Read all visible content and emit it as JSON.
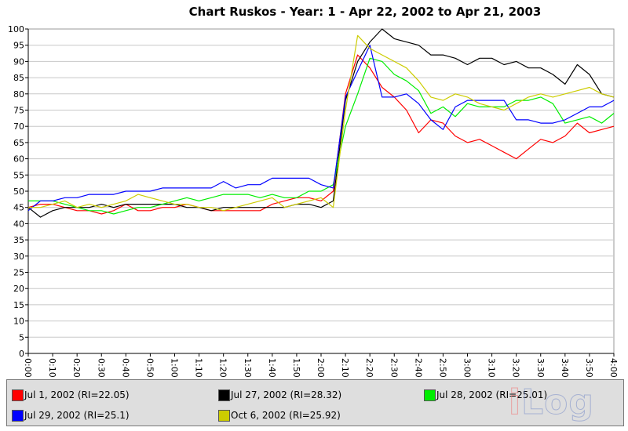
{
  "chart_data": {
    "type": "line",
    "title": "Chart Ruskos - Year: 1 - Apr 22, 2002 to Apr 21, 2003",
    "xlabel": "",
    "ylabel": "",
    "ylim": [
      0,
      100
    ],
    "yticks": [
      0,
      5,
      10,
      15,
      20,
      25,
      30,
      35,
      40,
      45,
      50,
      55,
      60,
      65,
      70,
      75,
      80,
      85,
      90,
      95,
      100
    ],
    "x_tick_labels": [
      "0:00",
      "0:10",
      "0:20",
      "0:30",
      "0:40",
      "0:50",
      "1:00",
      "1:10",
      "1:20",
      "1:30",
      "1:40",
      "1:50",
      "2:00",
      "2:10",
      "2:20",
      "2:30",
      "2:40",
      "2:50",
      "3:00",
      "3:10",
      "3:20",
      "3:30",
      "3:40",
      "3:50",
      "4:00"
    ],
    "x_minutes_range": [
      0,
      240
    ],
    "grid": true,
    "legend_position": "bottom",
    "series": [
      {
        "name": "Jul 1, 2002 (RI=22.05)",
        "color": "#ff0000",
        "points": [
          [
            0,
            45
          ],
          [
            5,
            46
          ],
          [
            10,
            46
          ],
          [
            15,
            45
          ],
          [
            20,
            44
          ],
          [
            25,
            44
          ],
          [
            30,
            43
          ],
          [
            35,
            44
          ],
          [
            40,
            46
          ],
          [
            45,
            44
          ],
          [
            50,
            44
          ],
          [
            55,
            45
          ],
          [
            60,
            45
          ],
          [
            65,
            46
          ],
          [
            70,
            45
          ],
          [
            75,
            44
          ],
          [
            80,
            44
          ],
          [
            85,
            44
          ],
          [
            90,
            44
          ],
          [
            95,
            44
          ],
          [
            100,
            46
          ],
          [
            105,
            47
          ],
          [
            110,
            48
          ],
          [
            115,
            48
          ],
          [
            120,
            47
          ],
          [
            125,
            50
          ],
          [
            130,
            80
          ],
          [
            135,
            92
          ],
          [
            140,
            88
          ],
          [
            145,
            82
          ],
          [
            150,
            79
          ],
          [
            155,
            75
          ],
          [
            160,
            68
          ],
          [
            165,
            72
          ],
          [
            170,
            71
          ],
          [
            175,
            67
          ],
          [
            180,
            65
          ],
          [
            185,
            66
          ],
          [
            190,
            64
          ],
          [
            195,
            62
          ],
          [
            200,
            60
          ],
          [
            205,
            63
          ],
          [
            210,
            66
          ],
          [
            215,
            65
          ],
          [
            220,
            67
          ],
          [
            225,
            71
          ],
          [
            230,
            68
          ],
          [
            235,
            69
          ],
          [
            240,
            70
          ]
        ]
      },
      {
        "name": "Jul 27, 2002 (RI=28.32)",
        "color": "#000000",
        "points": [
          [
            0,
            45
          ],
          [
            5,
            42
          ],
          [
            10,
            44
          ],
          [
            15,
            45
          ],
          [
            20,
            45
          ],
          [
            25,
            45
          ],
          [
            30,
            46
          ],
          [
            35,
            45
          ],
          [
            40,
            46
          ],
          [
            45,
            46
          ],
          [
            50,
            46
          ],
          [
            55,
            46
          ],
          [
            60,
            46
          ],
          [
            65,
            45
          ],
          [
            70,
            45
          ],
          [
            75,
            44
          ],
          [
            80,
            45
          ],
          [
            85,
            45
          ],
          [
            90,
            45
          ],
          [
            95,
            45
          ],
          [
            100,
            45
          ],
          [
            105,
            45
          ],
          [
            110,
            46
          ],
          [
            115,
            46
          ],
          [
            120,
            45
          ],
          [
            125,
            47
          ],
          [
            130,
            78
          ],
          [
            135,
            90
          ],
          [
            140,
            96
          ],
          [
            145,
            100
          ],
          [
            150,
            97
          ],
          [
            155,
            96
          ],
          [
            160,
            95
          ],
          [
            165,
            92
          ],
          [
            170,
            92
          ],
          [
            175,
            91
          ],
          [
            180,
            89
          ],
          [
            185,
            91
          ],
          [
            190,
            91
          ],
          [
            195,
            89
          ],
          [
            200,
            90
          ],
          [
            205,
            88
          ],
          [
            210,
            88
          ],
          [
            215,
            86
          ],
          [
            220,
            83
          ],
          [
            225,
            89
          ],
          [
            230,
            86
          ],
          [
            235,
            80
          ],
          [
            240,
            79
          ]
        ]
      },
      {
        "name": "Jul 28, 2002 (RI=25.01)",
        "color": "#00ee00",
        "points": [
          [
            0,
            47
          ],
          [
            5,
            47
          ],
          [
            10,
            47
          ],
          [
            15,
            46
          ],
          [
            20,
            45
          ],
          [
            25,
            44
          ],
          [
            30,
            44
          ],
          [
            35,
            43
          ],
          [
            40,
            44
          ],
          [
            45,
            45
          ],
          [
            50,
            45
          ],
          [
            55,
            46
          ],
          [
            60,
            47
          ],
          [
            65,
            48
          ],
          [
            70,
            47
          ],
          [
            75,
            48
          ],
          [
            80,
            49
          ],
          [
            85,
            49
          ],
          [
            90,
            49
          ],
          [
            95,
            48
          ],
          [
            100,
            49
          ],
          [
            105,
            48
          ],
          [
            110,
            48
          ],
          [
            115,
            50
          ],
          [
            120,
            50
          ],
          [
            125,
            52
          ],
          [
            130,
            70
          ],
          [
            135,
            80
          ],
          [
            140,
            91
          ],
          [
            145,
            90
          ],
          [
            150,
            86
          ],
          [
            155,
            84
          ],
          [
            160,
            81
          ],
          [
            165,
            74
          ],
          [
            170,
            76
          ],
          [
            175,
            73
          ],
          [
            180,
            77
          ],
          [
            185,
            76
          ],
          [
            190,
            76
          ],
          [
            195,
            76
          ],
          [
            200,
            78
          ],
          [
            205,
            78
          ],
          [
            210,
            79
          ],
          [
            215,
            77
          ],
          [
            220,
            71
          ],
          [
            225,
            72
          ],
          [
            230,
            73
          ],
          [
            235,
            71
          ],
          [
            240,
            74
          ]
        ]
      },
      {
        "name": "Jul 29, 2002 (RI=25.1)",
        "color": "#0000ff",
        "points": [
          [
            0,
            44
          ],
          [
            5,
            47
          ],
          [
            10,
            47
          ],
          [
            15,
            48
          ],
          [
            20,
            48
          ],
          [
            25,
            49
          ],
          [
            30,
            49
          ],
          [
            35,
            49
          ],
          [
            40,
            50
          ],
          [
            45,
            50
          ],
          [
            50,
            50
          ],
          [
            55,
            51
          ],
          [
            60,
            51
          ],
          [
            65,
            51
          ],
          [
            70,
            51
          ],
          [
            75,
            51
          ],
          [
            80,
            53
          ],
          [
            85,
            51
          ],
          [
            90,
            52
          ],
          [
            95,
            52
          ],
          [
            100,
            54
          ],
          [
            105,
            54
          ],
          [
            110,
            54
          ],
          [
            115,
            54
          ],
          [
            120,
            52
          ],
          [
            125,
            51
          ],
          [
            130,
            79
          ],
          [
            135,
            87
          ],
          [
            140,
            95
          ],
          [
            145,
            79
          ],
          [
            150,
            79
          ],
          [
            155,
            80
          ],
          [
            160,
            77
          ],
          [
            165,
            72
          ],
          [
            170,
            69
          ],
          [
            175,
            76
          ],
          [
            180,
            78
          ],
          [
            185,
            78
          ],
          [
            190,
            78
          ],
          [
            195,
            78
          ],
          [
            200,
            72
          ],
          [
            205,
            72
          ],
          [
            210,
            71
          ],
          [
            215,
            71
          ],
          [
            220,
            72
          ],
          [
            225,
            74
          ],
          [
            230,
            76
          ],
          [
            235,
            76
          ],
          [
            240,
            78
          ]
        ]
      },
      {
        "name": "Oct 6, 2002 (RI=25.92)",
        "color": "#cccc00",
        "points": [
          [
            0,
            45
          ],
          [
            5,
            45
          ],
          [
            10,
            46
          ],
          [
            15,
            47
          ],
          [
            20,
            45
          ],
          [
            25,
            46
          ],
          [
            30,
            45
          ],
          [
            35,
            46
          ],
          [
            40,
            47
          ],
          [
            45,
            49
          ],
          [
            50,
            48
          ],
          [
            55,
            47
          ],
          [
            60,
            46
          ],
          [
            65,
            46
          ],
          [
            70,
            45
          ],
          [
            75,
            45
          ],
          [
            80,
            44
          ],
          [
            85,
            45
          ],
          [
            90,
            46
          ],
          [
            95,
            47
          ],
          [
            100,
            48
          ],
          [
            105,
            45
          ],
          [
            110,
            46
          ],
          [
            115,
            47
          ],
          [
            120,
            48
          ],
          [
            125,
            45
          ],
          [
            130,
            75
          ],
          [
            135,
            98
          ],
          [
            140,
            94
          ],
          [
            145,
            92
          ],
          [
            150,
            90
          ],
          [
            155,
            88
          ],
          [
            160,
            84
          ],
          [
            165,
            79
          ],
          [
            170,
            78
          ],
          [
            175,
            80
          ],
          [
            180,
            79
          ],
          [
            185,
            77
          ],
          [
            190,
            76
          ],
          [
            195,
            75
          ],
          [
            200,
            77
          ],
          [
            205,
            79
          ],
          [
            210,
            80
          ],
          [
            215,
            79
          ],
          [
            220,
            80
          ],
          [
            225,
            81
          ],
          [
            230,
            82
          ],
          [
            235,
            80
          ],
          [
            240,
            79
          ]
        ]
      }
    ]
  },
  "watermark": "iLog"
}
